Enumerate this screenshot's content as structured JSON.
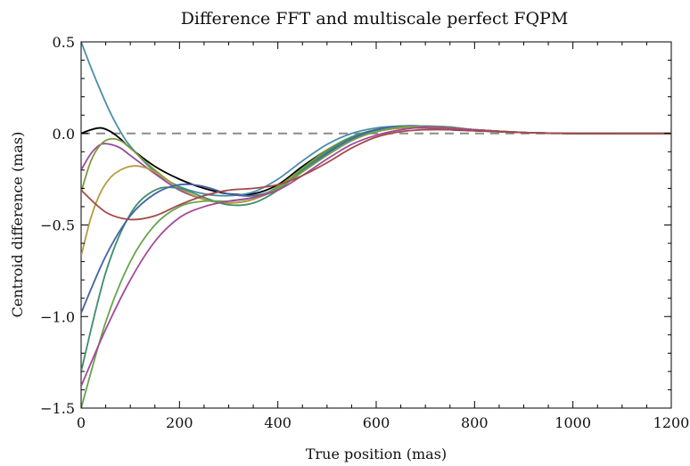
{
  "chart_data": {
    "type": "line",
    "title": "Difference FFT and multiscale perfect FQPM",
    "xlabel": "True position (mas)",
    "ylabel": "Centroid difference (mas)",
    "xlim": [
      0,
      1200
    ],
    "ylim": [
      -1.5,
      0.5
    ],
    "xticks": [
      0,
      200,
      400,
      600,
      800,
      1000,
      1200
    ],
    "xtick_labels": [
      "0",
      "200",
      "400",
      "600",
      "800",
      "1000",
      "1200"
    ],
    "yticks": [
      -1.5,
      -1.0,
      -0.5,
      0.0,
      0.5
    ],
    "ytick_labels": [
      "−1.5",
      "−1.0",
      "−0.5",
      "0.0",
      "0.5"
    ],
    "grid": false,
    "reference_line": {
      "y": 0.0,
      "style": "dashed",
      "color": "#8c8c8c"
    },
    "series": [
      {
        "color": "#000000",
        "x": [
          0,
          20,
          40,
          60,
          80,
          100,
          150,
          200,
          250,
          300,
          350,
          400,
          450,
          500,
          550,
          600,
          650,
          700,
          750,
          800,
          900,
          1000,
          1100,
          1200
        ],
        "y": [
          0.0,
          0.02,
          0.03,
          0.01,
          -0.03,
          -0.08,
          -0.18,
          -0.25,
          -0.3,
          -0.33,
          -0.33,
          -0.28,
          -0.18,
          -0.09,
          -0.02,
          0.02,
          0.03,
          0.03,
          0.02,
          0.015,
          0.005,
          0.0,
          0.0,
          0.0
        ]
      },
      {
        "color": "#4a8fa9",
        "x": [
          0,
          20,
          40,
          60,
          80,
          100,
          150,
          200,
          250,
          300,
          350,
          400,
          450,
          500,
          550,
          600,
          650,
          700,
          750,
          800,
          900,
          1000,
          1100,
          1200
        ],
        "y": [
          0.5,
          0.36,
          0.23,
          0.11,
          0.01,
          -0.07,
          -0.21,
          -0.29,
          -0.33,
          -0.34,
          -0.32,
          -0.25,
          -0.15,
          -0.06,
          0.0,
          0.03,
          0.04,
          0.04,
          0.03,
          0.02,
          0.005,
          0.0,
          0.0,
          0.0
        ]
      },
      {
        "color": "#9b4a9a",
        "x": [
          0,
          20,
          40,
          60,
          80,
          100,
          150,
          200,
          250,
          300,
          350,
          400,
          450,
          500,
          550,
          600,
          650,
          700,
          750,
          800,
          900,
          1000,
          1100,
          1200
        ],
        "y": [
          -0.2,
          -0.11,
          -0.06,
          -0.06,
          -0.08,
          -0.12,
          -0.22,
          -0.31,
          -0.36,
          -0.38,
          -0.36,
          -0.3,
          -0.2,
          -0.1,
          -0.03,
          0.01,
          0.03,
          0.03,
          0.025,
          0.02,
          0.005,
          0.0,
          0.0,
          0.0
        ]
      },
      {
        "color": "#7a9a3a",
        "x": [
          0,
          20,
          40,
          60,
          80,
          100,
          150,
          200,
          250,
          300,
          350,
          400,
          450,
          500,
          550,
          600,
          650,
          700,
          750,
          800,
          900,
          1000,
          1100,
          1200
        ],
        "y": [
          -0.32,
          -0.15,
          -0.06,
          -0.03,
          -0.04,
          -0.08,
          -0.2,
          -0.3,
          -0.36,
          -0.38,
          -0.36,
          -0.29,
          -0.19,
          -0.09,
          -0.02,
          0.02,
          0.035,
          0.035,
          0.03,
          0.02,
          0.005,
          0.0,
          0.0,
          0.0
        ]
      },
      {
        "color": "#b59a3e",
        "x": [
          0,
          20,
          40,
          60,
          80,
          100,
          120,
          150,
          200,
          250,
          300,
          350,
          400,
          450,
          500,
          550,
          600,
          650,
          700,
          750,
          800,
          900,
          1000,
          1100,
          1200
        ],
        "y": [
          -0.67,
          -0.46,
          -0.32,
          -0.24,
          -0.2,
          -0.18,
          -0.18,
          -0.21,
          -0.3,
          -0.36,
          -0.38,
          -0.36,
          -0.3,
          -0.2,
          -0.1,
          -0.03,
          0.01,
          0.03,
          0.035,
          0.03,
          0.02,
          0.005,
          0.0,
          0.0,
          0.0
        ]
      },
      {
        "color": "#3e8f6c",
        "x": [
          0,
          50,
          100,
          150,
          200,
          250,
          300,
          350,
          400,
          450,
          500,
          550,
          600,
          650,
          700,
          750,
          800,
          900,
          1000,
          1100,
          1200
        ],
        "y": [
          -1.3,
          -0.76,
          -0.44,
          -0.31,
          -0.3,
          -0.35,
          -0.39,
          -0.38,
          -0.31,
          -0.2,
          -0.1,
          -0.02,
          0.02,
          0.04,
          0.04,
          0.03,
          0.02,
          0.005,
          0.0,
          0.0,
          0.0
        ]
      },
      {
        "color": "#4464a6",
        "x": [
          0,
          50,
          100,
          150,
          200,
          250,
          300,
          350,
          400,
          450,
          500,
          550,
          600,
          650,
          700,
          750,
          800,
          900,
          1000,
          1100,
          1200
        ],
        "y": [
          -0.98,
          -0.67,
          -0.45,
          -0.33,
          -0.28,
          -0.29,
          -0.33,
          -0.34,
          -0.3,
          -0.21,
          -0.11,
          -0.03,
          0.02,
          0.04,
          0.04,
          0.035,
          0.02,
          0.005,
          0.0,
          0.0,
          0.0
        ]
      },
      {
        "color": "#69a44c",
        "x": [
          0,
          50,
          100,
          150,
          200,
          250,
          300,
          350,
          400,
          450,
          500,
          550,
          600,
          650,
          700,
          750,
          800,
          900,
          1000,
          1100,
          1200
        ],
        "y": [
          -1.5,
          -1.03,
          -0.7,
          -0.5,
          -0.4,
          -0.37,
          -0.37,
          -0.35,
          -0.3,
          -0.21,
          -0.12,
          -0.04,
          0.01,
          0.035,
          0.04,
          0.035,
          0.02,
          0.005,
          0.0,
          0.0,
          0.0
        ]
      },
      {
        "color": "#a4489a",
        "x": [
          0,
          50,
          100,
          150,
          200,
          250,
          300,
          350,
          400,
          450,
          500,
          550,
          600,
          650,
          700,
          750,
          800,
          900,
          1000,
          1100,
          1200
        ],
        "y": [
          -1.38,
          -1.07,
          -0.8,
          -0.59,
          -0.46,
          -0.4,
          -0.37,
          -0.35,
          -0.31,
          -0.23,
          -0.14,
          -0.06,
          -0.01,
          0.02,
          0.035,
          0.03,
          0.02,
          0.005,
          0.0,
          0.0,
          0.0
        ]
      },
      {
        "color": "#a24a48",
        "x": [
          0,
          50,
          100,
          150,
          200,
          250,
          300,
          350,
          400,
          450,
          500,
          550,
          600,
          650,
          700,
          750,
          800,
          900,
          1000,
          1100,
          1200
        ],
        "y": [
          -0.31,
          -0.43,
          -0.47,
          -0.45,
          -0.39,
          -0.34,
          -0.31,
          -0.3,
          -0.28,
          -0.23,
          -0.16,
          -0.08,
          -0.02,
          0.01,
          0.02,
          0.02,
          0.015,
          0.005,
          0.0,
          0.0,
          0.0
        ]
      }
    ]
  }
}
